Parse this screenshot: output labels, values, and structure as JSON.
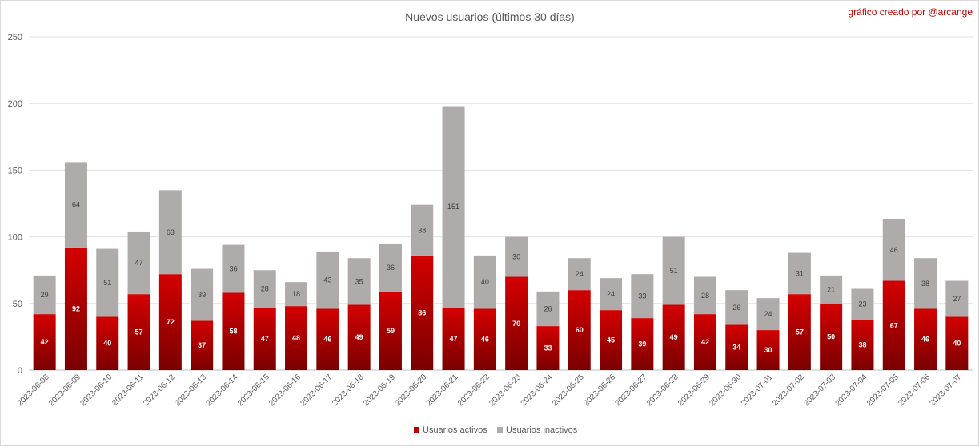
{
  "chart_data": {
    "type": "bar",
    "stacked": true,
    "title": "Nuevos usuarios (últimos 30 días)",
    "credit": "gráfico creado por @arcange",
    "categories": [
      "2023-06-08",
      "2023-06-09",
      "2023-06-10",
      "2023-06-11",
      "2023-06-12",
      "2023-06-13",
      "2023-06-14",
      "2023-06-15",
      "2023-06-16",
      "2023-06-17",
      "2023-06-18",
      "2023-06-19",
      "2023-06-20",
      "2023-06-21",
      "2023-06-22",
      "2023-06-23",
      "2023-06-24",
      "2023-06-25",
      "2023-06-26",
      "2023-06-27",
      "2023-06-28",
      "2023-06-29",
      "2023-06-30",
      "2023-07-01",
      "2023-07-02",
      "2023-07-03",
      "2023-07-04",
      "2023-07-05",
      "2023-07-06",
      "2023-07-07"
    ],
    "series": [
      {
        "name": "Usuarios activos",
        "color": "#c00000",
        "values": [
          42,
          92,
          40,
          57,
          72,
          37,
          58,
          47,
          48,
          46,
          49,
          59,
          86,
          47,
          46,
          70,
          33,
          60,
          45,
          39,
          49,
          42,
          34,
          30,
          57,
          50,
          38,
          67,
          46,
          40
        ]
      },
      {
        "name": "Usuarios inactivos",
        "color": "#afabab",
        "values": [
          29,
          64,
          51,
          47,
          63,
          39,
          36,
          28,
          18,
          43,
          35,
          36,
          38,
          151,
          40,
          30,
          26,
          24,
          24,
          33,
          51,
          28,
          26,
          24,
          31,
          21,
          23,
          46,
          38,
          27
        ]
      }
    ],
    "ylim": [
      0,
      250
    ],
    "yticks": [
      0,
      50,
      100,
      150,
      200,
      250
    ],
    "grid": true,
    "legend": "bottom"
  }
}
